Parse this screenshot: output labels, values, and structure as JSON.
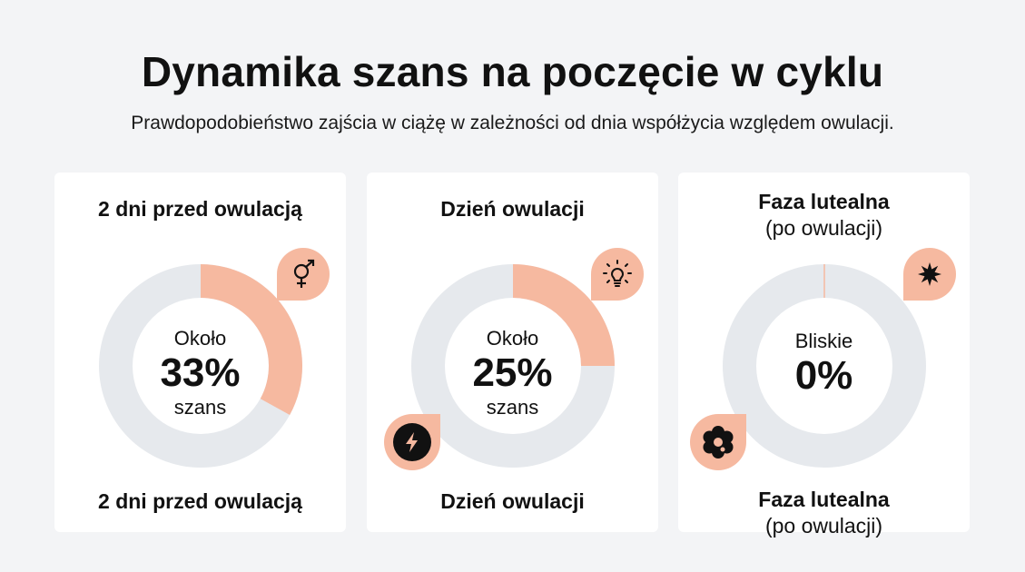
{
  "header": {
    "title": "Dynamika szans na poczęcie w cyklu",
    "subtitle": "Prawdopodobieństwo zajścia w ciążę w zależności od dnia współżycia względem owulacji."
  },
  "colors": {
    "accent": "#f6b9a0",
    "track": "#e6e9ed",
    "background": "#f3f4f6"
  },
  "chart_data": [
    {
      "type": "pie",
      "title": "2 dni przed owulacją",
      "subtitle": "",
      "value": 33,
      "center_pre": "Około",
      "center_value": "33%",
      "center_post": "szans",
      "footer": "2 dni przed owulacją",
      "footer_sub": "",
      "icons": [
        "gender-symbol-icon"
      ]
    },
    {
      "type": "pie",
      "title": "Dzień owulacji",
      "subtitle": "",
      "value": 25,
      "center_pre": "Około",
      "center_value": "25%",
      "center_post": "szans",
      "footer": "Dzień owulacji",
      "footer_sub": "",
      "icons": [
        "lightbulb-icon",
        "lightning-icon"
      ]
    },
    {
      "type": "pie",
      "title": "Faza lutealna",
      "subtitle": "(po owulacji)",
      "value": 0,
      "center_pre": "Bliskie",
      "center_value": "0%",
      "center_post": "",
      "footer": "Faza lutealna",
      "footer_sub": "(po owulacji)",
      "icons": [
        "star-burst-icon",
        "flower-icon"
      ]
    }
  ]
}
